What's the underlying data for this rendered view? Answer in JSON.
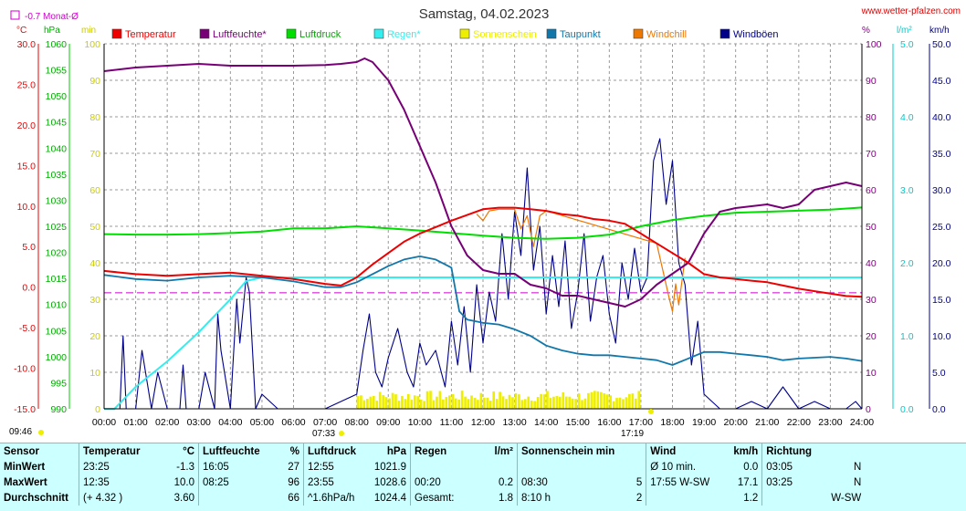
{
  "title": "Samstag, 04.02.2023",
  "source": "www.wetter-pfalzen.com",
  "monthly_avg_label": "-0.7 Monat-Ø",
  "axis_units": {
    "temp": "°C",
    "pressure": "hPa",
    "sun": "min",
    "humidity": "%",
    "rain": "l/m²",
    "wind": "km/h"
  },
  "sunrise": "07:33",
  "sunset": "17:19",
  "now_time": "09:46",
  "colors": {
    "temp": "#ee0000",
    "hum": "#770077",
    "pres": "#00dd00",
    "rain": "#33eeee",
    "sun": "#eeee00",
    "dew": "#1177aa",
    "chill": "#ee7700",
    "gust": "#000088"
  },
  "chart_data": {
    "type": "line",
    "title": "Samstag, 04.02.2023",
    "x_ticks": [
      "00:00",
      "01:00",
      "02:00",
      "03:00",
      "04:00",
      "05:00",
      "06:00",
      "07:00",
      "08:00",
      "09:00",
      "10:00",
      "11:00",
      "12:00",
      "13:00",
      "14:00",
      "15:00",
      "16:00",
      "17:00",
      "18:00",
      "19:00",
      "20:00",
      "21:00",
      "22:00",
      "23:00",
      "24:00"
    ],
    "xlim": [
      0,
      24
    ],
    "axes": {
      "temp": {
        "label": "°C",
        "ylim": [
          -15,
          30
        ],
        "ticks": [
          "30.0",
          "25.0",
          "20.0",
          "15.0",
          "10.0",
          "5.0",
          "0.0",
          "-5.0",
          "-10.0",
          "-15.0"
        ]
      },
      "pressure": {
        "label": "hPa",
        "ylim": [
          990,
          1060
        ],
        "ticks": [
          "1060",
          "1055",
          "1050",
          "1045",
          "1040",
          "1035",
          "1030",
          "1025",
          "1020",
          "1015",
          "1010",
          "1005",
          "1000",
          "995",
          "990"
        ]
      },
      "sun": {
        "label": "min",
        "ylim": [
          0,
          100
        ],
        "ticks": [
          "100",
          "90",
          "80",
          "70",
          "60",
          "50",
          "40",
          "30",
          "20",
          "10",
          "0"
        ]
      },
      "humidity": {
        "label": "%",
        "ylim": [
          0,
          100
        ],
        "ticks": [
          "100",
          "90",
          "80",
          "70",
          "60",
          "50",
          "40",
          "30",
          "20",
          "10",
          "0"
        ]
      },
      "rain": {
        "label": "l/m²",
        "ylim": [
          0,
          5
        ],
        "ticks": [
          "5.0",
          "4.0",
          "3.0",
          "2.0",
          "1.0",
          "0.0"
        ]
      },
      "wind": {
        "label": "km/h",
        "ylim": [
          0,
          50
        ],
        "ticks": [
          "50.0",
          "45.0",
          "40.0",
          "35.0",
          "30.0",
          "25.0",
          "20.0",
          "15.0",
          "10.0",
          "5.0",
          "0.0"
        ]
      }
    },
    "monthly_avg_temp": -0.7,
    "legend": [
      {
        "key": "temp",
        "label": "Temperatur"
      },
      {
        "key": "hum",
        "label": "Luftfeuchte*"
      },
      {
        "key": "pres",
        "label": "Luftdruck"
      },
      {
        "key": "rain",
        "label": "Regen*"
      },
      {
        "key": "sun",
        "label": "Sonnenschein"
      },
      {
        "key": "dew",
        "label": "Taupunkt"
      },
      {
        "key": "chill",
        "label": "Windchill"
      },
      {
        "key": "gust",
        "label": "Windböen"
      }
    ],
    "series": [
      {
        "key": "temp",
        "name": "Temperatur",
        "axis": "temp",
        "x": [
          0,
          1,
          2,
          3,
          4,
          5,
          6,
          7,
          7.5,
          8,
          8.5,
          9,
          9.5,
          10,
          10.5,
          11,
          11.5,
          12,
          12.5,
          13,
          13.5,
          14,
          14.5,
          15,
          15.5,
          16,
          16.5,
          17,
          17.5,
          18,
          18.5,
          19,
          19.5,
          20,
          20.5,
          21,
          21.5,
          22,
          22.5,
          23,
          23.5,
          24
        ],
        "y": [
          2.0,
          1.6,
          1.4,
          1.6,
          1.8,
          1.4,
          1.0,
          0.4,
          0.2,
          1.2,
          2.8,
          4.2,
          5.6,
          6.6,
          7.4,
          8.2,
          8.9,
          9.6,
          9.8,
          9.8,
          9.6,
          9.4,
          9.0,
          8.8,
          8.4,
          8.2,
          7.8,
          6.6,
          5.4,
          4.2,
          3.0,
          1.6,
          1.2,
          1.0,
          0.8,
          0.6,
          0.2,
          -0.2,
          -0.5,
          -0.8,
          -1.1,
          -1.2
        ]
      },
      {
        "key": "hum",
        "name": "Luftfeuchte*",
        "axis": "humidity",
        "x": [
          0,
          1,
          2,
          3,
          4,
          5,
          6,
          7,
          7.5,
          8,
          8.25,
          8.5,
          9,
          9.5,
          10,
          10.5,
          11,
          11.5,
          12,
          12.5,
          13,
          13.5,
          14,
          14.5,
          15,
          15.5,
          16,
          16.5,
          17,
          17.5,
          18,
          18.5,
          19,
          19.5,
          20,
          20.5,
          21,
          21.5,
          22,
          22.5,
          23,
          23.5,
          24
        ],
        "y": [
          92.5,
          93.5,
          94,
          94.5,
          94,
          94,
          94,
          94.2,
          94.5,
          95,
          96,
          95,
          90,
          82,
          72,
          62,
          50,
          42,
          38,
          37,
          37,
          34,
          33,
          31,
          31,
          30,
          29,
          28,
          30,
          34,
          37,
          40,
          48,
          54,
          55,
          55.5,
          56,
          55,
          56,
          60,
          61,
          62,
          61
        ]
      },
      {
        "key": "pres",
        "name": "Luftdruck",
        "axis": "pressure",
        "x": [
          0,
          1,
          2,
          3,
          4,
          5,
          6,
          7,
          8,
          9,
          10,
          11,
          12,
          13,
          14,
          15,
          16,
          17,
          18,
          19,
          20,
          21,
          22,
          23,
          24
        ],
        "y": [
          1023.5,
          1023.4,
          1023.4,
          1023.5,
          1023.7,
          1024.0,
          1024.6,
          1024.6,
          1025.0,
          1024.6,
          1024.2,
          1023.7,
          1023.2,
          1022.8,
          1022.6,
          1022.8,
          1023.4,
          1025.0,
          1026.2,
          1027.0,
          1027.6,
          1027.8,
          1028.0,
          1028.2,
          1028.6
        ]
      },
      {
        "key": "rain",
        "name": "Regen*",
        "axis": "rain",
        "x": [
          0,
          0.33,
          1,
          2,
          3,
          4,
          4.5,
          5,
          6,
          8,
          12,
          16,
          20,
          24
        ],
        "y": [
          0,
          0,
          0.3,
          0.65,
          1.05,
          1.5,
          1.75,
          1.8,
          1.8,
          1.8,
          1.8,
          1.8,
          1.8,
          1.8
        ]
      },
      {
        "key": "dew",
        "name": "Taupunkt",
        "axis": "temp",
        "x": [
          0,
          1,
          2,
          3,
          4,
          5,
          6,
          7,
          7.5,
          8,
          8.5,
          9,
          9.5,
          10,
          10.5,
          11,
          11.25,
          11.5,
          12,
          12.5,
          13,
          13.5,
          14,
          14.5,
          15,
          15.5,
          16,
          16.5,
          17,
          17.5,
          18,
          18.5,
          19,
          19.5,
          20,
          20.5,
          21,
          21.5,
          22,
          22.5,
          23,
          23.5,
          24
        ],
        "y": [
          1.5,
          1.0,
          0.8,
          1.2,
          1.4,
          1.2,
          0.7,
          0.0,
          0.0,
          0.6,
          1.6,
          2.6,
          3.4,
          3.8,
          3.4,
          2.4,
          -3.0,
          -4.0,
          -4.4,
          -4.6,
          -5.2,
          -6.0,
          -7.2,
          -7.8,
          -8.2,
          -8.4,
          -8.4,
          -8.6,
          -8.8,
          -9.0,
          -9.6,
          -8.8,
          -8.0,
          -8.0,
          -8.2,
          -8.4,
          -8.6,
          -9.0,
          -8.8,
          -8.7,
          -8.6,
          -8.8,
          -9.1
        ]
      },
      {
        "key": "chill",
        "name": "Windchill",
        "axis": "temp",
        "x": [
          11.8,
          12.0,
          12.2,
          12.5,
          13.0,
          13.2,
          13.4,
          13.6,
          13.8,
          14.0,
          17.5,
          17.7,
          17.9,
          18.0,
          18.1,
          18.2,
          18.4
        ],
        "y": [
          9.0,
          8.2,
          9.4,
          9.6,
          9.6,
          7.2,
          8.8,
          5.0,
          8.8,
          9.4,
          5.4,
          2.0,
          -1.4,
          -3.0,
          0.4,
          -2.2,
          3.6
        ]
      },
      {
        "key": "gust",
        "name": "Windböen",
        "axis": "wind",
        "x": [
          0.0,
          0.5,
          0.6,
          0.7,
          1.0,
          1.2,
          1.5,
          1.7,
          2.0,
          2.4,
          2.5,
          2.6,
          3.0,
          3.2,
          3.5,
          3.6,
          3.7,
          4.0,
          4.2,
          4.3,
          4.5,
          4.6,
          4.8,
          5.0,
          5.5,
          6.0,
          6.5,
          7.0,
          7.5,
          8.0,
          8.2,
          8.4,
          8.6,
          8.8,
          9.0,
          9.3,
          9.6,
          9.8,
          10.0,
          10.2,
          10.5,
          10.8,
          11.0,
          11.2,
          11.4,
          11.6,
          11.8,
          12.0,
          12.2,
          12.4,
          12.6,
          12.8,
          13.0,
          13.2,
          13.4,
          13.6,
          13.8,
          14.0,
          14.2,
          14.4,
          14.6,
          14.8,
          15.0,
          15.2,
          15.4,
          15.6,
          15.8,
          16.0,
          16.2,
          16.4,
          16.6,
          16.8,
          17.0,
          17.2,
          17.4,
          17.6,
          17.8,
          18.0,
          18.2,
          18.4,
          18.6,
          18.8,
          19.0,
          19.5,
          20.0,
          20.5,
          21.0,
          21.5,
          22.0,
          22.5,
          23.0,
          23.5,
          23.8,
          24.0
        ],
        "y": [
          0,
          0,
          10,
          0,
          0,
          8,
          0,
          5,
          0,
          0,
          6,
          0,
          0,
          5,
          0,
          13,
          8,
          0,
          15,
          9,
          18,
          16,
          0,
          2,
          0,
          0,
          0,
          0,
          1,
          2,
          8,
          13,
          5,
          3,
          7,
          11,
          5,
          3,
          9,
          6,
          8,
          3,
          12,
          6,
          14,
          5,
          17,
          9,
          16,
          12,
          24,
          15,
          27,
          21,
          33,
          19,
          25,
          13,
          21,
          14,
          23,
          11,
          16,
          24,
          12,
          18,
          21,
          13,
          9,
          20,
          15,
          22,
          16,
          18,
          34,
          37,
          28,
          34,
          20,
          17,
          6,
          12,
          2,
          0,
          0,
          1,
          0,
          3,
          0,
          1,
          0,
          0,
          1,
          0
        ]
      }
    ],
    "sun_minutes": {
      "axis": "sun",
      "x_start": 8.0,
      "x_end": 16.95,
      "step": 0.1,
      "value_range": [
        2,
        5
      ]
    }
  },
  "summary": {
    "headers": [
      {
        "label": "Sensor",
        "unit": ""
      },
      {
        "label": "Temperatur",
        "unit": "°C"
      },
      {
        "label": "Luftfeuchte",
        "unit": "%"
      },
      {
        "label": "Luftdruck",
        "unit": "hPa"
      },
      {
        "label": "Regen",
        "unit": "l/m²"
      },
      {
        "label": "Sonnenschein min",
        "unit": ""
      },
      {
        "label": "Wind",
        "unit": "km/h"
      },
      {
        "label": "Richtung",
        "unit": ""
      }
    ],
    "rows": [
      {
        "label": "MinWert",
        "cells": [
          [
            "23:25",
            "-1.3"
          ],
          [
            "16:05",
            "27"
          ],
          [
            "12:55",
            "1021.9"
          ],
          [
            "",
            ""
          ],
          [
            "",
            ""
          ],
          [
            "Ø 10 min.",
            "0.0"
          ],
          [
            "03:05",
            "N"
          ]
        ]
      },
      {
        "label": "MaxWert",
        "cells": [
          [
            "12:35",
            "10.0"
          ],
          [
            "08:25",
            "96"
          ],
          [
            "23:55",
            "1028.6"
          ],
          [
            "00:20",
            "0.2"
          ],
          [
            "08:30",
            "5"
          ],
          [
            "17:55   W-SW",
            "17.1"
          ],
          [
            "03:25",
            "N"
          ]
        ]
      },
      {
        "label": "Durchschnitt",
        "cells": [
          [
            "(+ 4.32 )",
            "3.60"
          ],
          [
            "",
            "66"
          ],
          [
            "^1.6hPa/h",
            "1024.4"
          ],
          [
            "Gesamt:",
            "1.8"
          ],
          [
            "8:10 h",
            "2"
          ],
          [
            "",
            "1.2"
          ],
          [
            "",
            "W-SW"
          ]
        ]
      }
    ]
  }
}
